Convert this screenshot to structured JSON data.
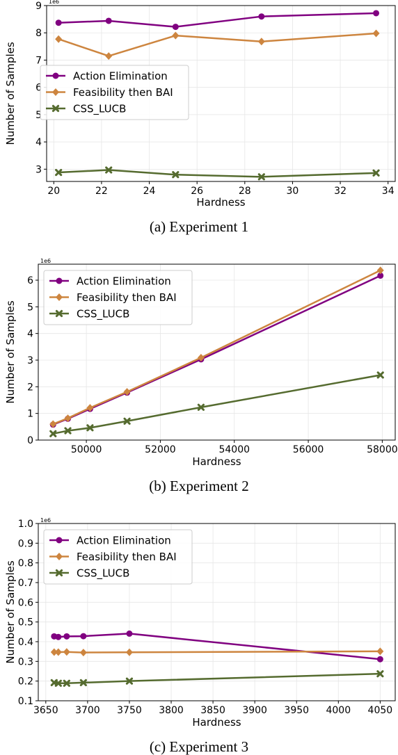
{
  "colors": {
    "action_elimination": "#800080",
    "feasibility_then_bai": "#CD853F",
    "css_lucb": "#556B2F",
    "grid": "#e6e6e6"
  },
  "chart_data": [
    {
      "type": "line",
      "caption": "(a) Experiment 1",
      "xlabel": "Hardness",
      "ylabel": "Number of Samples",
      "y_multiplier": "1e6",
      "xlim": [
        19.7,
        34.3
      ],
      "ylim": [
        2.55,
        9.0
      ],
      "xticks": [
        20,
        22,
        24,
        26,
        28,
        30,
        32,
        34
      ],
      "yticks": [
        3,
        4,
        5,
        6,
        7,
        8,
        9
      ],
      "x": [
        20.2,
        22.3,
        25.1,
        28.7,
        33.5
      ],
      "legend_position": "center-left",
      "series": [
        {
          "name": "Action Elimination",
          "color_key": "action_elimination",
          "marker": "circle",
          "values": [
            8.37,
            8.44,
            8.22,
            8.6,
            8.72
          ]
        },
        {
          "name": "Feasibility then BAI",
          "color_key": "feasibility_then_bai",
          "marker": "diamond",
          "values": [
            7.77,
            7.15,
            7.9,
            7.68,
            7.98
          ]
        },
        {
          "name": "CSS_LUCB",
          "color_key": "css_lucb",
          "marker": "x",
          "values": [
            2.88,
            2.97,
            2.8,
            2.72,
            2.86
          ]
        }
      ]
    },
    {
      "type": "line",
      "caption": "(b) Experiment 2",
      "xlabel": "Hardness",
      "ylabel": "Number of Samples",
      "y_multiplier": "1e6",
      "xlim": [
        48700,
        58350
      ],
      "ylim": [
        0,
        6.6
      ],
      "xticks": [
        50000,
        52000,
        54000,
        56000,
        58000
      ],
      "yticks": [
        0,
        1,
        2,
        3,
        4,
        5,
        6
      ],
      "x": [
        49100,
        49500,
        50100,
        51100,
        53100,
        57950
      ],
      "legend_position": "upper-left",
      "series": [
        {
          "name": "Action Elimination",
          "color_key": "action_elimination",
          "marker": "circle",
          "values": [
            0.58,
            0.8,
            1.17,
            1.78,
            3.03,
            6.17
          ]
        },
        {
          "name": "Feasibility then BAI",
          "color_key": "feasibility_then_bai",
          "marker": "diamond",
          "values": [
            0.6,
            0.82,
            1.21,
            1.81,
            3.09,
            6.37
          ]
        },
        {
          "name": "CSS_LUCB",
          "color_key": "css_lucb",
          "marker": "x",
          "values": [
            0.24,
            0.35,
            0.46,
            0.71,
            1.23,
            2.44
          ]
        }
      ]
    },
    {
      "type": "line",
      "caption": "(c) Experiment 3",
      "xlabel": "Hardness",
      "ylabel": "Number of Samples",
      "y_multiplier": "1e6",
      "xlim": [
        3641,
        4068
      ],
      "ylim": [
        0.1,
        1.0
      ],
      "xticks": [
        3650,
        3700,
        3750,
        3800,
        3850,
        3900,
        3950,
        4000,
        4050
      ],
      "yticks": [
        0.1,
        0.2,
        0.3,
        0.4,
        0.5,
        0.6,
        0.7,
        0.8,
        0.9,
        1.0
      ],
      "x": [
        3660,
        3665,
        3675,
        3695,
        3750,
        4050
      ],
      "legend_position": "upper-left",
      "series": [
        {
          "name": "Action Elimination",
          "color_key": "action_elimination",
          "marker": "circle",
          "values": [
            0.427,
            0.424,
            0.427,
            0.428,
            0.441,
            0.311
          ]
        },
        {
          "name": "Feasibility then BAI",
          "color_key": "feasibility_then_bai",
          "marker": "diamond",
          "values": [
            0.347,
            0.347,
            0.348,
            0.345,
            0.346,
            0.351
          ]
        },
        {
          "name": "CSS_LUCB",
          "color_key": "css_lucb",
          "marker": "x",
          "values": [
            0.192,
            0.189,
            0.189,
            0.192,
            0.2,
            0.237
          ]
        }
      ]
    }
  ]
}
